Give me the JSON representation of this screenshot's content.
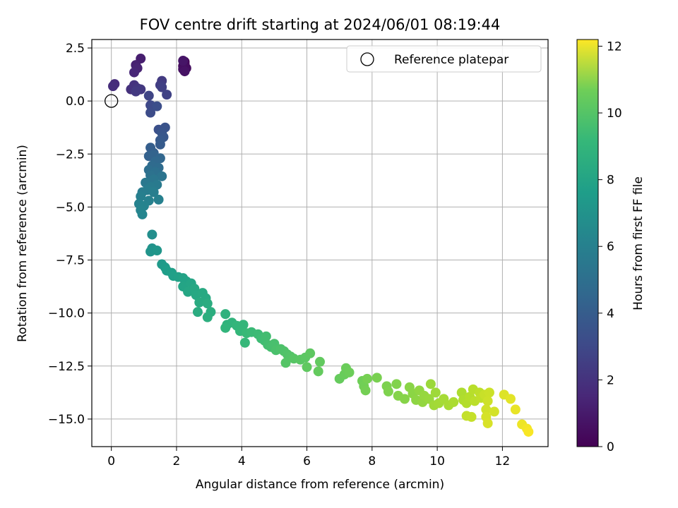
{
  "chart_data": {
    "type": "scatter",
    "title": "FOV centre drift starting at 2024/06/01 08:19:44",
    "xlabel": "Angular distance from reference (arcmin)",
    "ylabel": "Rotation from reference (arcmin)",
    "xlim": [
      -0.6,
      13.4
    ],
    "ylim": [
      -16.3,
      2.9
    ],
    "xticks": [
      0,
      2,
      4,
      6,
      8,
      10,
      12
    ],
    "xtick_labels": [
      "0",
      "2",
      "4",
      "6",
      "8",
      "10",
      "12"
    ],
    "yticks": [
      2.5,
      0.0,
      -2.5,
      -5.0,
      -7.5,
      -10.0,
      -12.5,
      -15.0
    ],
    "ytick_labels": [
      "2.5",
      "0.0",
      "−2.5",
      "−5.0",
      "−7.5",
      "−10.0",
      "−12.5",
      "−15.0"
    ],
    "grid": true,
    "legend": {
      "placement": "top-right",
      "entries": [
        {
          "label": "Reference platepar",
          "marker": "open-circle"
        }
      ]
    },
    "reference_point": {
      "x": 0,
      "y": 0
    },
    "colorbar": {
      "label": "Hours from first FF file",
      "colormap": "viridis",
      "range": [
        0,
        12.2
      ],
      "ticks": [
        0,
        2,
        4,
        6,
        8,
        10,
        12
      ],
      "tick_labels": [
        "0",
        "2",
        "4",
        "6",
        "8",
        "10",
        "12"
      ]
    },
    "points": [
      {
        "x": 2.25,
        "y": 1.85,
        "t": 0.1
      },
      {
        "x": 2.25,
        "y": 1.75,
        "t": 0.2
      },
      {
        "x": 2.2,
        "y": 1.65,
        "t": 0.3
      },
      {
        "x": 2.3,
        "y": 1.55,
        "t": 0.4
      },
      {
        "x": 2.2,
        "y": 1.5,
        "t": 0.5
      },
      {
        "x": 2.25,
        "y": 1.4,
        "t": 0.6
      },
      {
        "x": 2.2,
        "y": 1.9,
        "t": 0.7
      },
      {
        "x": 0.9,
        "y": 2.0,
        "t": 1.0
      },
      {
        "x": 0.75,
        "y": 1.7,
        "t": 1.1
      },
      {
        "x": 0.8,
        "y": 1.55,
        "t": 1.2
      },
      {
        "x": 0.7,
        "y": 1.35,
        "t": 1.3
      },
      {
        "x": 0.1,
        "y": 0.8,
        "t": 1.5
      },
      {
        "x": 0.05,
        "y": 0.7,
        "t": 1.6
      },
      {
        "x": 0.6,
        "y": 0.55,
        "t": 1.7
      },
      {
        "x": 0.7,
        "y": 0.75,
        "t": 1.8
      },
      {
        "x": 0.8,
        "y": 0.6,
        "t": 1.9
      },
      {
        "x": 0.9,
        "y": 0.55,
        "t": 2.0
      },
      {
        "x": 0.75,
        "y": 0.45,
        "t": 2.05
      },
      {
        "x": 1.55,
        "y": 0.95,
        "t": 2.1
      },
      {
        "x": 1.5,
        "y": 0.75,
        "t": 2.2
      },
      {
        "x": 1.55,
        "y": 0.65,
        "t": 2.3
      },
      {
        "x": 1.7,
        "y": 0.3,
        "t": 2.4
      },
      {
        "x": 1.15,
        "y": 0.25,
        "t": 2.5
      },
      {
        "x": 1.2,
        "y": -0.2,
        "t": 2.6
      },
      {
        "x": 1.25,
        "y": -0.25,
        "t": 2.7
      },
      {
        "x": 1.2,
        "y": -0.55,
        "t": 2.8
      },
      {
        "x": 1.4,
        "y": -0.25,
        "t": 2.9
      },
      {
        "x": 1.45,
        "y": -1.35,
        "t": 3.0
      },
      {
        "x": 1.65,
        "y": -1.25,
        "t": 3.1
      },
      {
        "x": 1.55,
        "y": -1.5,
        "t": 3.2
      },
      {
        "x": 1.6,
        "y": -1.7,
        "t": 3.3
      },
      {
        "x": 1.5,
        "y": -1.85,
        "t": 3.4
      },
      {
        "x": 1.5,
        "y": -2.05,
        "t": 3.5
      },
      {
        "x": 1.2,
        "y": -2.2,
        "t": 3.6
      },
      {
        "x": 1.3,
        "y": -2.45,
        "t": 3.7
      },
      {
        "x": 1.15,
        "y": -2.6,
        "t": 3.8
      },
      {
        "x": 1.3,
        "y": -2.55,
        "t": 3.9
      },
      {
        "x": 1.5,
        "y": -2.7,
        "t": 4.0
      },
      {
        "x": 1.35,
        "y": -2.85,
        "t": 4.1
      },
      {
        "x": 1.25,
        "y": -3.05,
        "t": 4.2
      },
      {
        "x": 1.45,
        "y": -3.15,
        "t": 4.3
      },
      {
        "x": 1.15,
        "y": -3.25,
        "t": 4.4
      },
      {
        "x": 1.35,
        "y": -3.35,
        "t": 4.5
      },
      {
        "x": 1.2,
        "y": -3.5,
        "t": 4.6
      },
      {
        "x": 1.55,
        "y": -3.55,
        "t": 4.7
      },
      {
        "x": 1.3,
        "y": -3.7,
        "t": 4.8
      },
      {
        "x": 1.05,
        "y": -3.85,
        "t": 4.9
      },
      {
        "x": 1.4,
        "y": -3.95,
        "t": 5.0
      },
      {
        "x": 1.2,
        "y": -4.05,
        "t": 5.05
      },
      {
        "x": 0.95,
        "y": -4.3,
        "t": 5.1
      },
      {
        "x": 1.1,
        "y": -4.2,
        "t": 5.15
      },
      {
        "x": 1.3,
        "y": -4.3,
        "t": 5.2
      },
      {
        "x": 0.9,
        "y": -4.5,
        "t": 5.25
      },
      {
        "x": 1.45,
        "y": -4.65,
        "t": 5.3
      },
      {
        "x": 1.15,
        "y": -4.7,
        "t": 5.35
      },
      {
        "x": 0.85,
        "y": -4.85,
        "t": 5.4
      },
      {
        "x": 1.0,
        "y": -4.95,
        "t": 5.45
      },
      {
        "x": 0.9,
        "y": -5.15,
        "t": 5.5
      },
      {
        "x": 0.95,
        "y": -5.35,
        "t": 5.55
      },
      {
        "x": 1.25,
        "y": -6.3,
        "t": 6.0
      },
      {
        "x": 1.25,
        "y": -6.95,
        "t": 6.2
      },
      {
        "x": 1.2,
        "y": -7.1,
        "t": 6.3
      },
      {
        "x": 1.4,
        "y": -7.05,
        "t": 6.4
      },
      {
        "x": 1.55,
        "y": -7.7,
        "t": 6.6
      },
      {
        "x": 1.65,
        "y": -7.85,
        "t": 6.7
      },
      {
        "x": 1.7,
        "y": -8.0,
        "t": 6.8
      },
      {
        "x": 1.85,
        "y": -8.1,
        "t": 6.85
      },
      {
        "x": 1.9,
        "y": -8.25,
        "t": 6.9
      },
      {
        "x": 2.05,
        "y": -8.3,
        "t": 6.95
      },
      {
        "x": 2.2,
        "y": -8.35,
        "t": 7.0
      },
      {
        "x": 2.3,
        "y": -8.5,
        "t": 7.05
      },
      {
        "x": 2.2,
        "y": -8.75,
        "t": 7.1
      },
      {
        "x": 2.45,
        "y": -8.6,
        "t": 7.15
      },
      {
        "x": 2.35,
        "y": -9.0,
        "t": 7.2
      },
      {
        "x": 2.55,
        "y": -8.85,
        "t": 7.25
      },
      {
        "x": 2.6,
        "y": -9.15,
        "t": 7.3
      },
      {
        "x": 2.8,
        "y": -9.05,
        "t": 7.35
      },
      {
        "x": 2.9,
        "y": -9.3,
        "t": 7.4
      },
      {
        "x": 2.7,
        "y": -9.5,
        "t": 7.45
      },
      {
        "x": 2.65,
        "y": -9.95,
        "t": 7.5
      },
      {
        "x": 2.95,
        "y": -9.55,
        "t": 7.55
      },
      {
        "x": 3.05,
        "y": -9.95,
        "t": 7.6
      },
      {
        "x": 2.95,
        "y": -10.2,
        "t": 7.65
      },
      {
        "x": 3.5,
        "y": -10.05,
        "t": 7.8
      },
      {
        "x": 3.55,
        "y": -10.55,
        "t": 7.85
      },
      {
        "x": 3.7,
        "y": -10.45,
        "t": 7.9
      },
      {
        "x": 3.5,
        "y": -10.7,
        "t": 7.95
      },
      {
        "x": 3.85,
        "y": -10.6,
        "t": 8.0
      },
      {
        "x": 4.05,
        "y": -10.55,
        "t": 8.05
      },
      {
        "x": 3.95,
        "y": -10.85,
        "t": 8.1
      },
      {
        "x": 4.1,
        "y": -11.4,
        "t": 8.15
      },
      {
        "x": 4.15,
        "y": -10.95,
        "t": 8.2
      },
      {
        "x": 4.3,
        "y": -10.9,
        "t": 8.25
      },
      {
        "x": 4.5,
        "y": -11.0,
        "t": 8.3
      },
      {
        "x": 4.6,
        "y": -11.2,
        "t": 8.35
      },
      {
        "x": 4.7,
        "y": -11.3,
        "t": 8.4
      },
      {
        "x": 4.75,
        "y": -11.1,
        "t": 8.45
      },
      {
        "x": 4.8,
        "y": -11.5,
        "t": 8.5
      },
      {
        "x": 4.9,
        "y": -11.6,
        "t": 8.55
      },
      {
        "x": 5.0,
        "y": -11.45,
        "t": 8.6
      },
      {
        "x": 5.05,
        "y": -11.75,
        "t": 8.65
      },
      {
        "x": 5.2,
        "y": -11.7,
        "t": 8.7
      },
      {
        "x": 5.3,
        "y": -11.8,
        "t": 8.75
      },
      {
        "x": 5.4,
        "y": -11.95,
        "t": 8.8
      },
      {
        "x": 5.5,
        "y": -12.05,
        "t": 8.85
      },
      {
        "x": 5.35,
        "y": -12.35,
        "t": 8.9
      },
      {
        "x": 5.6,
        "y": -12.15,
        "t": 8.95
      },
      {
        "x": 5.8,
        "y": -12.2,
        "t": 9.0
      },
      {
        "x": 5.95,
        "y": -12.1,
        "t": 9.05
      },
      {
        "x": 6.1,
        "y": -11.9,
        "t": 9.1
      },
      {
        "x": 6.0,
        "y": -12.55,
        "t": 9.15
      },
      {
        "x": 6.4,
        "y": -12.3,
        "t": 9.2
      },
      {
        "x": 6.35,
        "y": -12.75,
        "t": 9.25
      },
      {
        "x": 7.0,
        "y": -13.1,
        "t": 9.3
      },
      {
        "x": 7.15,
        "y": -12.9,
        "t": 9.35
      },
      {
        "x": 7.2,
        "y": -12.6,
        "t": 9.4
      },
      {
        "x": 7.3,
        "y": -12.8,
        "t": 9.45
      },
      {
        "x": 7.7,
        "y": -13.2,
        "t": 9.5
      },
      {
        "x": 7.75,
        "y": -13.45,
        "t": 9.55
      },
      {
        "x": 7.8,
        "y": -13.65,
        "t": 9.6
      },
      {
        "x": 7.85,
        "y": -13.1,
        "t": 9.65
      },
      {
        "x": 8.15,
        "y": -13.05,
        "t": 9.7
      },
      {
        "x": 8.45,
        "y": -13.45,
        "t": 9.75
      },
      {
        "x": 8.5,
        "y": -13.7,
        "t": 9.8
      },
      {
        "x": 8.75,
        "y": -13.35,
        "t": 9.85
      },
      {
        "x": 8.8,
        "y": -13.9,
        "t": 9.9
      },
      {
        "x": 9.0,
        "y": -14.05,
        "t": 9.95
      },
      {
        "x": 9.15,
        "y": -13.5,
        "t": 10.0
      },
      {
        "x": 9.25,
        "y": -13.8,
        "t": 10.05
      },
      {
        "x": 9.35,
        "y": -14.1,
        "t": 10.1
      },
      {
        "x": 9.45,
        "y": -13.65,
        "t": 10.15
      },
      {
        "x": 9.55,
        "y": -14.2,
        "t": 10.2
      },
      {
        "x": 9.6,
        "y": -13.9,
        "t": 10.25
      },
      {
        "x": 9.75,
        "y": -14.05,
        "t": 10.3
      },
      {
        "x": 9.8,
        "y": -13.35,
        "t": 10.35
      },
      {
        "x": 9.95,
        "y": -13.75,
        "t": 10.4
      },
      {
        "x": 9.9,
        "y": -14.35,
        "t": 10.45
      },
      {
        "x": 10.05,
        "y": -14.25,
        "t": 10.5
      },
      {
        "x": 10.2,
        "y": -14.05,
        "t": 10.55
      },
      {
        "x": 10.35,
        "y": -14.35,
        "t": 10.6
      },
      {
        "x": 10.5,
        "y": -14.2,
        "t": 10.65
      },
      {
        "x": 10.75,
        "y": -13.75,
        "t": 10.7
      },
      {
        "x": 10.8,
        "y": -14.1,
        "t": 10.75
      },
      {
        "x": 10.9,
        "y": -14.25,
        "t": 10.8
      },
      {
        "x": 11.0,
        "y": -13.95,
        "t": 10.85
      },
      {
        "x": 11.1,
        "y": -13.6,
        "t": 10.9
      },
      {
        "x": 11.15,
        "y": -14.15,
        "t": 10.95
      },
      {
        "x": 11.3,
        "y": -13.75,
        "t": 11.0
      },
      {
        "x": 11.35,
        "y": -14.0,
        "t": 11.05
      },
      {
        "x": 10.9,
        "y": -14.85,
        "t": 11.1
      },
      {
        "x": 11.05,
        "y": -14.9,
        "t": 11.15
      },
      {
        "x": 11.45,
        "y": -13.85,
        "t": 11.2
      },
      {
        "x": 11.6,
        "y": -13.75,
        "t": 11.25
      },
      {
        "x": 11.55,
        "y": -14.15,
        "t": 11.3
      },
      {
        "x": 11.5,
        "y": -14.55,
        "t": 11.35
      },
      {
        "x": 11.75,
        "y": -14.65,
        "t": 11.4
      },
      {
        "x": 11.5,
        "y": -14.9,
        "t": 11.45
      },
      {
        "x": 11.55,
        "y": -15.2,
        "t": 11.5
      },
      {
        "x": 12.05,
        "y": -13.85,
        "t": 11.6
      },
      {
        "x": 12.25,
        "y": -14.05,
        "t": 11.7
      },
      {
        "x": 12.4,
        "y": -14.55,
        "t": 11.8
      },
      {
        "x": 12.6,
        "y": -15.25,
        "t": 11.9
      },
      {
        "x": 12.75,
        "y": -15.45,
        "t": 12.0
      },
      {
        "x": 12.8,
        "y": -15.6,
        "t": 12.1
      }
    ]
  }
}
